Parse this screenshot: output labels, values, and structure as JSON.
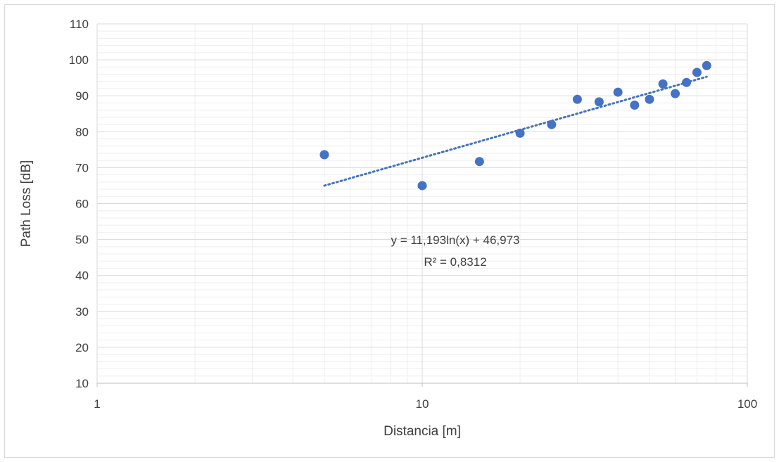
{
  "chart_data": {
    "type": "scatter",
    "title": "",
    "xlabel": "Distancia [m]",
    "ylabel": "Path Loss [dB]",
    "x_scale": "log",
    "xlim": [
      1,
      100
    ],
    "ylim": [
      10,
      110
    ],
    "x_ticks": [
      "1",
      "10",
      "100"
    ],
    "y_ticks": [
      "10",
      "20",
      "30",
      "40",
      "50",
      "60",
      "70",
      "80",
      "90",
      "100",
      "110"
    ],
    "grid": true,
    "legend": "none",
    "series": [
      {
        "color": "#4472c4",
        "x": [
          5,
          10,
          15,
          20,
          25,
          30,
          35,
          40,
          45,
          50,
          55,
          60,
          65,
          70,
          75
        ],
        "y": [
          73.6,
          65.0,
          71.7,
          79.6,
          82.0,
          89.0,
          88.3,
          91.0,
          87.4,
          89.0,
          93.3,
          90.6,
          93.7,
          96.5,
          98.4
        ]
      }
    ],
    "trendline": {
      "type": "logarithmic",
      "color": "#4472c4",
      "style": "dotted",
      "slope": 11.193,
      "intercept": 46.973,
      "x_range": [
        5,
        75
      ],
      "equation_label": "y = 11,193ln(x) + 46,973",
      "r2_label": "R² = 0,8312"
    }
  }
}
